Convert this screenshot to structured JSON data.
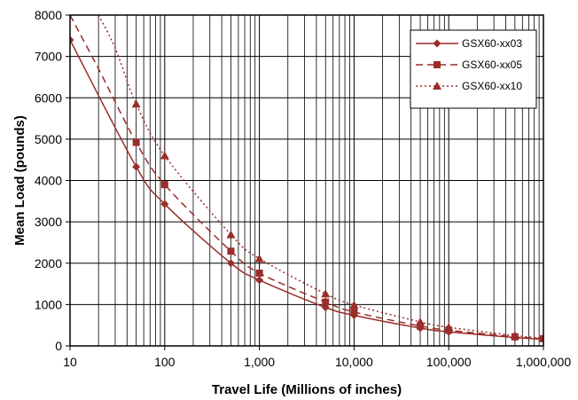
{
  "chart_data": {
    "type": "line",
    "x_scale": "log",
    "xlabel": "Travel Life (Millions of inches)",
    "ylabel": "Mean Load (pounds)",
    "xlim": [
      10,
      1000000
    ],
    "ylim": [
      0,
      8000
    ],
    "x_ticks": [
      10,
      100,
      1000,
      10000,
      100000,
      1000000
    ],
    "x_tick_labels": [
      "10",
      "100",
      "1,000",
      "10,000",
      "100,000",
      "1,000,000"
    ],
    "y_ticks": [
      0,
      1000,
      2000,
      3000,
      4000,
      5000,
      6000,
      7000,
      8000
    ],
    "y_tick_labels": [
      "0",
      "1000",
      "2000",
      "3000",
      "4000",
      "5000",
      "6000",
      "7000",
      "8000"
    ],
    "grid": true,
    "legend_position": "top-right",
    "series": [
      {
        "name": "GSX60-xx03",
        "marker": "diamond",
        "dash": "solid",
        "color": "#9b2d2a",
        "x": [
          10,
          50,
          100,
          500,
          1000,
          5000,
          10000,
          50000,
          100000,
          500000,
          1000000
        ],
        "y": [
          7400,
          4330,
          3430,
          2000,
          1590,
          930,
          740,
          430,
          340,
          200,
          160
        ],
        "markers_at": [
          10,
          50,
          100,
          500,
          1000,
          5000,
          10000,
          50000,
          100000,
          500000,
          1000000
        ]
      },
      {
        "name": "GSX60-xx05",
        "marker": "square",
        "dash": "dashed",
        "color": "#9b2d2a",
        "x": [
          10,
          20,
          50,
          100,
          500,
          1000,
          5000,
          10000,
          50000,
          100000,
          500000,
          1000000
        ],
        "y": [
          8000,
          6700,
          4920,
          3900,
          2290,
          1760,
          1060,
          820,
          480,
          380,
          220,
          175
        ],
        "markers_at": [
          50,
          100,
          500,
          1000,
          5000,
          10000,
          50000,
          100000,
          500000,
          1000000
        ]
      },
      {
        "name": "GSX60-xx10",
        "marker": "triangle",
        "dash": "dotted",
        "color": "#9b2d2a",
        "x": [
          20,
          30,
          50,
          100,
          500,
          1000,
          5000,
          10000,
          50000,
          100000,
          500000,
          1000000
        ],
        "y": [
          8000,
          7200,
          5850,
          4600,
          2690,
          2110,
          1260,
          990,
          580,
          450,
          250,
          185
        ],
        "markers_at": [
          50,
          100,
          500,
          1000,
          5000,
          10000,
          50000,
          100000,
          500000,
          1000000
        ]
      }
    ]
  }
}
